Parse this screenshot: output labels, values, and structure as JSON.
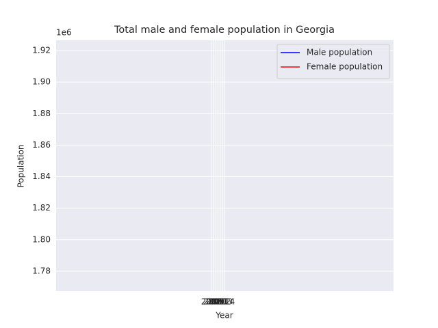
{
  "chart_data": {
    "type": "line",
    "title": "Total male and female population in Georgia",
    "xlabel": "Year",
    "ylabel": "Population",
    "y_offset_label": "1e6",
    "x": [],
    "series": [
      {
        "name": "Male population",
        "color": "#0000ff",
        "values": []
      },
      {
        "name": "Female population",
        "color": "#ff0000",
        "values": []
      }
    ],
    "xlim": [
      1936.4,
      2091.9
    ],
    "xticks": [
      2008,
      2009,
      2010,
      2011,
      2012,
      2013,
      2014
    ],
    "ylim": [
      1767400,
      1926500
    ],
    "yticks": [
      {
        "value": 1780000,
        "label": "1.78"
      },
      {
        "value": 1800000,
        "label": "1.80"
      },
      {
        "value": 1820000,
        "label": "1.82"
      },
      {
        "value": 1840000,
        "label": "1.84"
      },
      {
        "value": 1860000,
        "label": "1.86"
      },
      {
        "value": 1880000,
        "label": "1.88"
      },
      {
        "value": 1900000,
        "label": "1.90"
      },
      {
        "value": 1920000,
        "label": "1.92"
      }
    ],
    "grid": true,
    "legend": "upper right"
  }
}
